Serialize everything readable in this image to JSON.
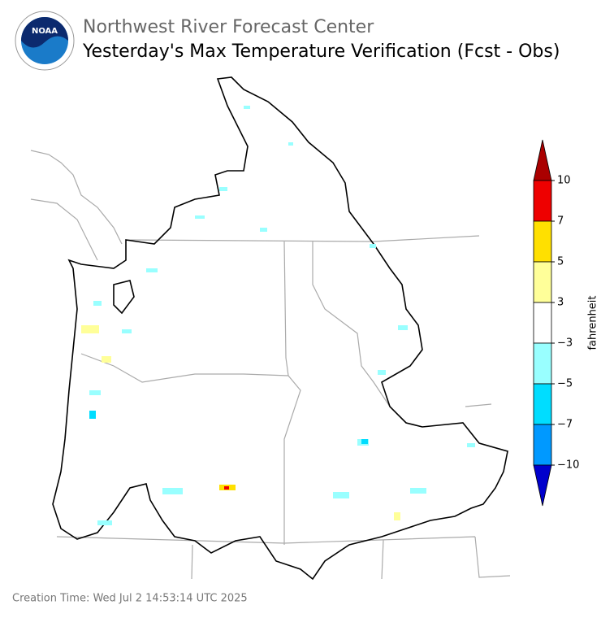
{
  "header": {
    "agency": "Northwest River Forecast Center",
    "title": "Yesterday's Max Temperature Verification (Fcst - Obs)",
    "logo_text": "NOAA"
  },
  "colorbar": {
    "label": "fahrenheit",
    "ticks": [
      10,
      7,
      5,
      {
        "value": 3,
        "label": "3"
      },
      {
        "value": -3,
        "label": "−3"
      },
      {
        "value": -5,
        "label": "−5"
      },
      {
        "value": -7,
        "label": "−7"
      },
      {
        "value": -10,
        "label": "−10"
      }
    ],
    "colors": [
      "#aa0000",
      "#ee0000",
      "#ffe000",
      "#ffff99",
      "#ffffff",
      "#99ffff",
      "#00ddff",
      "#0099ff",
      "#0000cc"
    ]
  },
  "footer": {
    "creation_time": "Creation Time: Wed Jul 2 14:53:14 UTC 2025"
  }
}
